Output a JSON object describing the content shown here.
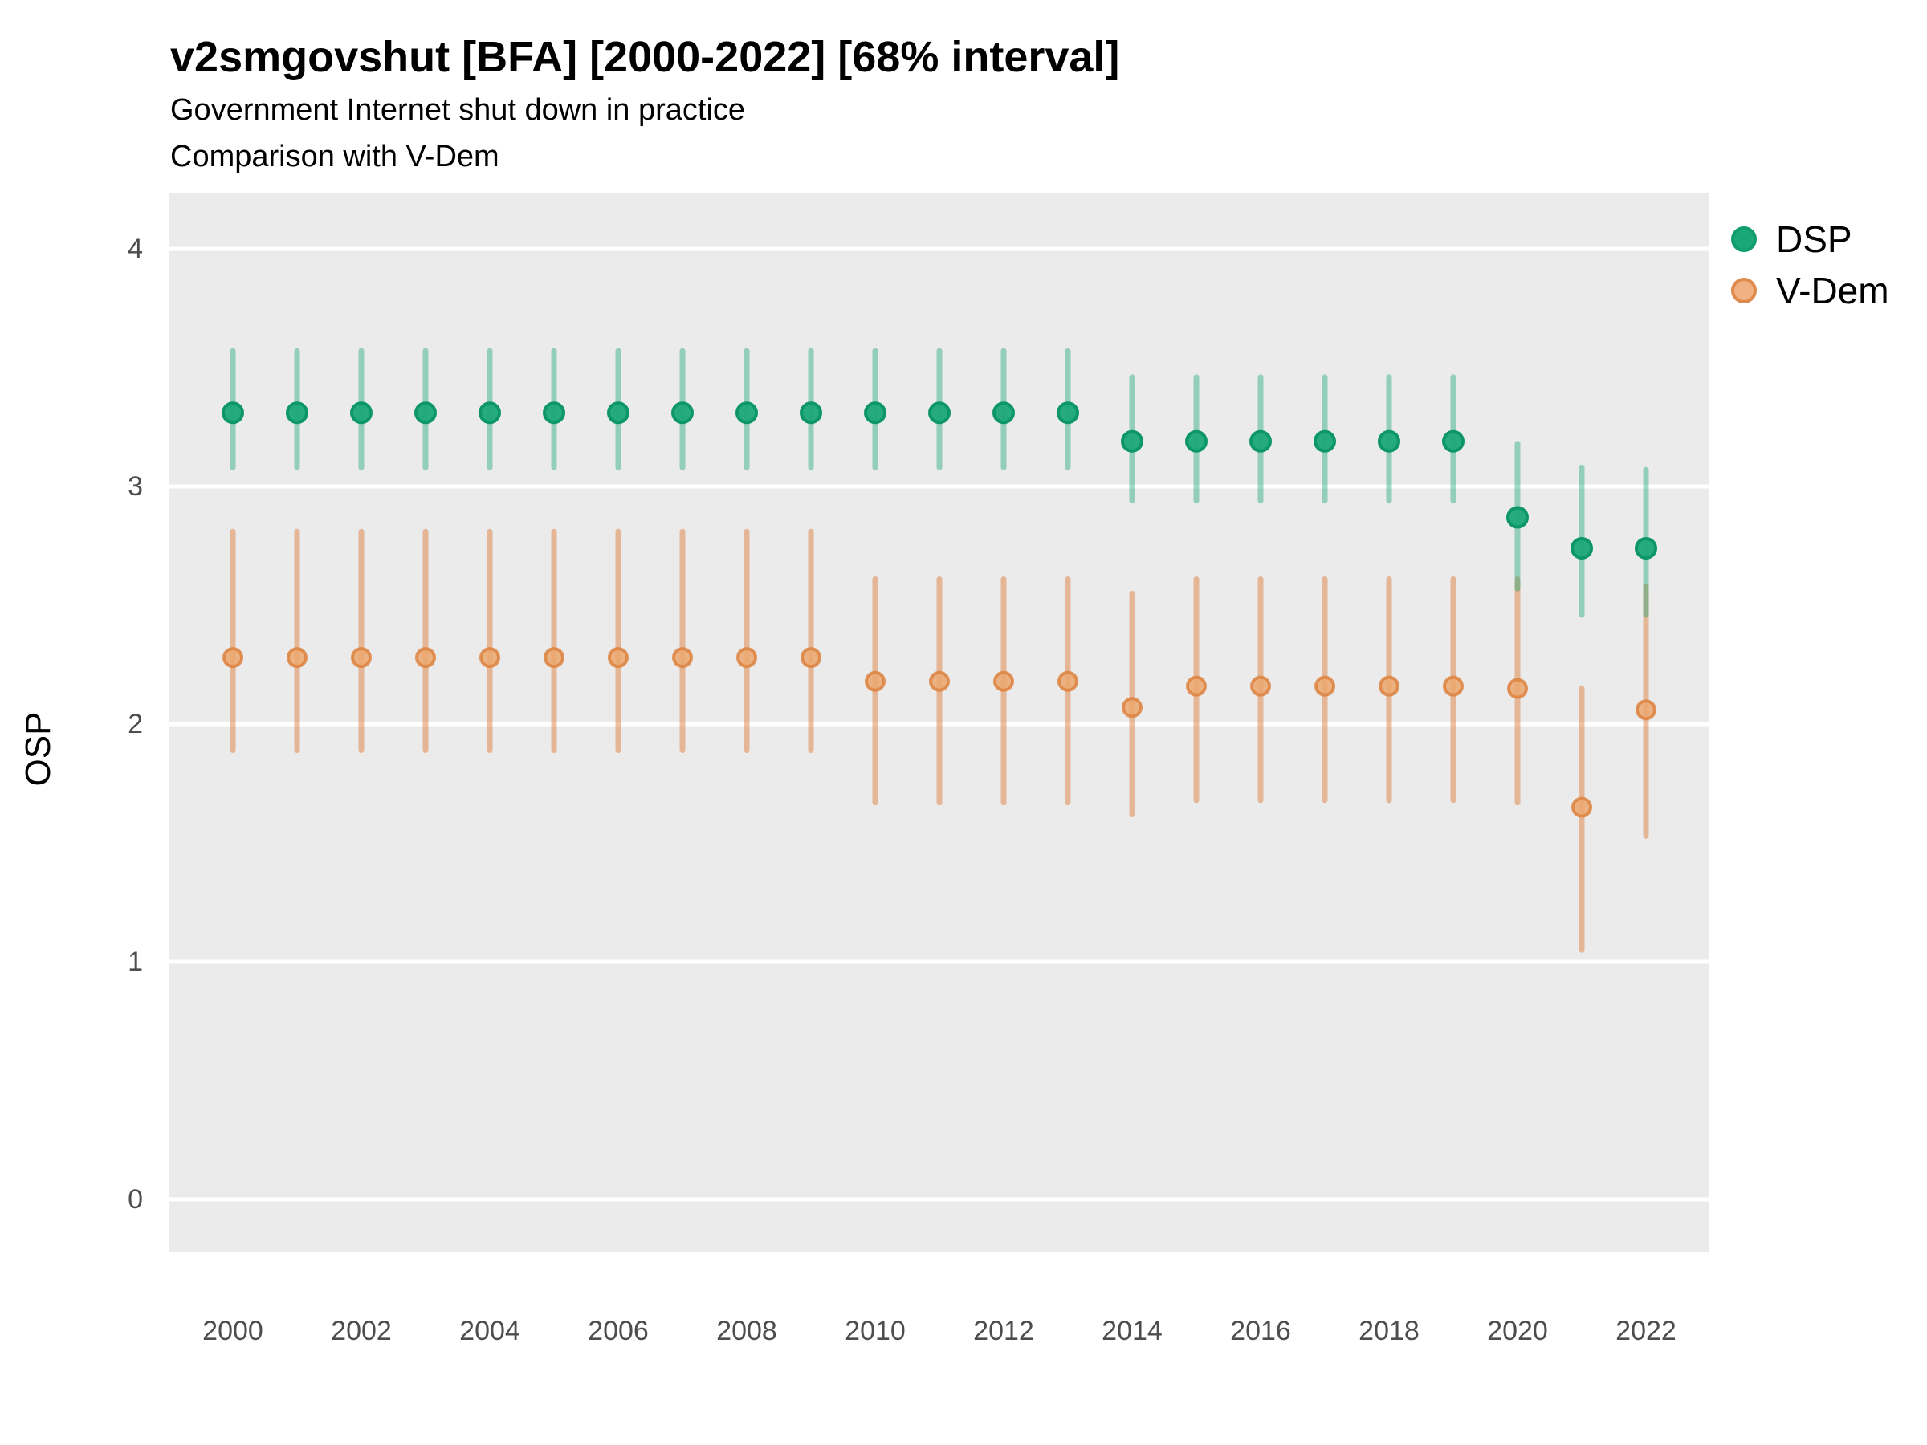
{
  "header": {
    "title": "v2smgovshut [BFA] [2000-2022] [68% interval]",
    "subtitle1": "Government Internet shut down in practice",
    "subtitle2": "Comparison with V-Dem"
  },
  "axes": {
    "y_label": "OSP",
    "y_ticks": [
      0,
      1,
      2,
      3,
      4
    ],
    "x_ticks": [
      2000,
      2002,
      2004,
      2006,
      2008,
      2010,
      2012,
      2014,
      2016,
      2018,
      2020,
      2022
    ]
  },
  "colors": {
    "panel_background": "#EBEBEB",
    "gridline": "#FFFFFF",
    "dsp_green": "#1BA878",
    "dsp_green_stroke": "#0D9668",
    "vdem_orange": "#DD8240",
    "vdem_orange_fill": "#ECA76D",
    "tick_text": "#4d4d4d"
  },
  "chart_data": {
    "type": "scatter",
    "title": "v2smgovshut [BFA] [2000-2022] [68% interval]",
    "subtitle": [
      "Government Internet shut down in practice",
      "Comparison with V-Dem"
    ],
    "ylabel": "OSP",
    "xlabel": "",
    "ylim": [
      0,
      4
    ],
    "xlim": [
      2000,
      2022
    ],
    "grid": "horizontal-major-white-on-gray",
    "legend_position": "right",
    "interval_note": "68% interval error bars",
    "x": [
      2000,
      2001,
      2002,
      2003,
      2004,
      2005,
      2006,
      2007,
      2008,
      2009,
      2010,
      2011,
      2012,
      2013,
      2014,
      2015,
      2016,
      2017,
      2018,
      2019,
      2020,
      2021,
      2022
    ],
    "series": [
      {
        "name": "DSP",
        "color": "#1BA878",
        "est": [
          3.31,
          3.31,
          3.31,
          3.31,
          3.31,
          3.31,
          3.31,
          3.31,
          3.31,
          3.31,
          3.31,
          3.31,
          3.31,
          3.31,
          3.19,
          3.19,
          3.19,
          3.19,
          3.19,
          3.19,
          2.87,
          2.74,
          2.74
        ],
        "lo": [
          3.08,
          3.08,
          3.08,
          3.08,
          3.08,
          3.08,
          3.08,
          3.08,
          3.08,
          3.08,
          3.08,
          3.08,
          3.08,
          3.08,
          2.94,
          2.94,
          2.94,
          2.94,
          2.94,
          2.94,
          2.57,
          2.46,
          2.46
        ],
        "hi": [
          3.57,
          3.57,
          3.57,
          3.57,
          3.57,
          3.57,
          3.57,
          3.57,
          3.57,
          3.57,
          3.57,
          3.57,
          3.57,
          3.57,
          3.46,
          3.46,
          3.46,
          3.46,
          3.46,
          3.46,
          3.18,
          3.08,
          3.07
        ]
      },
      {
        "name": "V-Dem",
        "color": "#DD8240",
        "est": [
          2.28,
          2.28,
          2.28,
          2.28,
          2.28,
          2.28,
          2.28,
          2.28,
          2.28,
          2.28,
          2.18,
          2.18,
          2.18,
          2.18,
          2.07,
          2.16,
          2.16,
          2.16,
          2.16,
          2.16,
          2.15,
          1.65,
          2.06
        ],
        "lo": [
          1.89,
          1.89,
          1.89,
          1.89,
          1.89,
          1.89,
          1.89,
          1.89,
          1.89,
          1.89,
          1.67,
          1.67,
          1.67,
          1.67,
          1.62,
          1.68,
          1.68,
          1.68,
          1.68,
          1.68,
          1.67,
          1.05,
          1.53
        ],
        "hi": [
          2.81,
          2.81,
          2.81,
          2.81,
          2.81,
          2.81,
          2.81,
          2.81,
          2.81,
          2.81,
          2.61,
          2.61,
          2.61,
          2.61,
          2.55,
          2.61,
          2.61,
          2.61,
          2.61,
          2.61,
          2.61,
          2.15,
          2.58
        ]
      }
    ]
  }
}
